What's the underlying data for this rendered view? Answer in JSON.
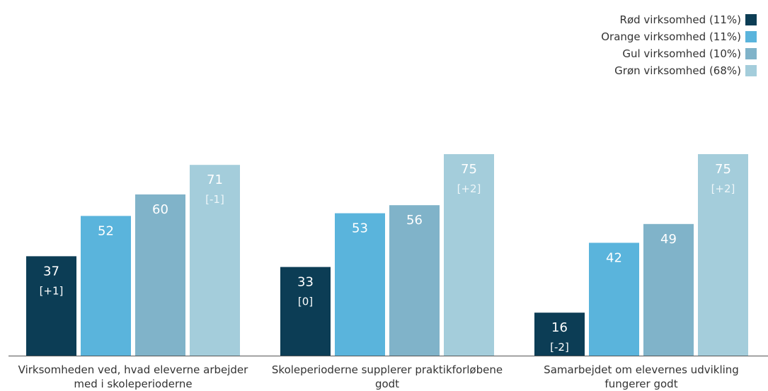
{
  "chart_data": {
    "type": "bar",
    "categories": [
      "Virksomheden ved, hvad eleverne arbejder med i skoleperioderne",
      "Skoleperioderne supplerer praktikforløbene godt",
      "Samarbejdet om elevernes udvikling fungerer godt"
    ],
    "category_lines": [
      [
        "Virksomheden ved, hvad eleverne arbejder",
        "med i skoleperioderne"
      ],
      [
        "Skoleperioderne supplerer praktikforløbene",
        "godt"
      ],
      [
        "Samarbejdet om elevernes udvikling",
        "fungerer godt"
      ]
    ],
    "series": [
      {
        "name": "Rød virksomhed (11%)",
        "color": "#0c3d55",
        "values": [
          37,
          33,
          16
        ],
        "changes": [
          "[+1]",
          "[0]",
          "[-2]"
        ]
      },
      {
        "name": "Orange virksomhed (11%)",
        "color": "#5ab4dc",
        "values": [
          52,
          53,
          42
        ],
        "changes": [
          "",
          "",
          ""
        ]
      },
      {
        "name": "Gul virksomhed (10%)",
        "color": "#80b3c9",
        "values": [
          60,
          56,
          49
        ],
        "changes": [
          "",
          "",
          ""
        ]
      },
      {
        "name": "Grøn virksomhed (68%)",
        "color": "#a4cddb",
        "values": [
          71,
          75,
          75
        ],
        "changes": [
          "[-1]",
          "[+2]",
          "[+2]"
        ]
      }
    ],
    "ylim": [
      0,
      100
    ],
    "grid": false,
    "legend_position": "top-right"
  }
}
